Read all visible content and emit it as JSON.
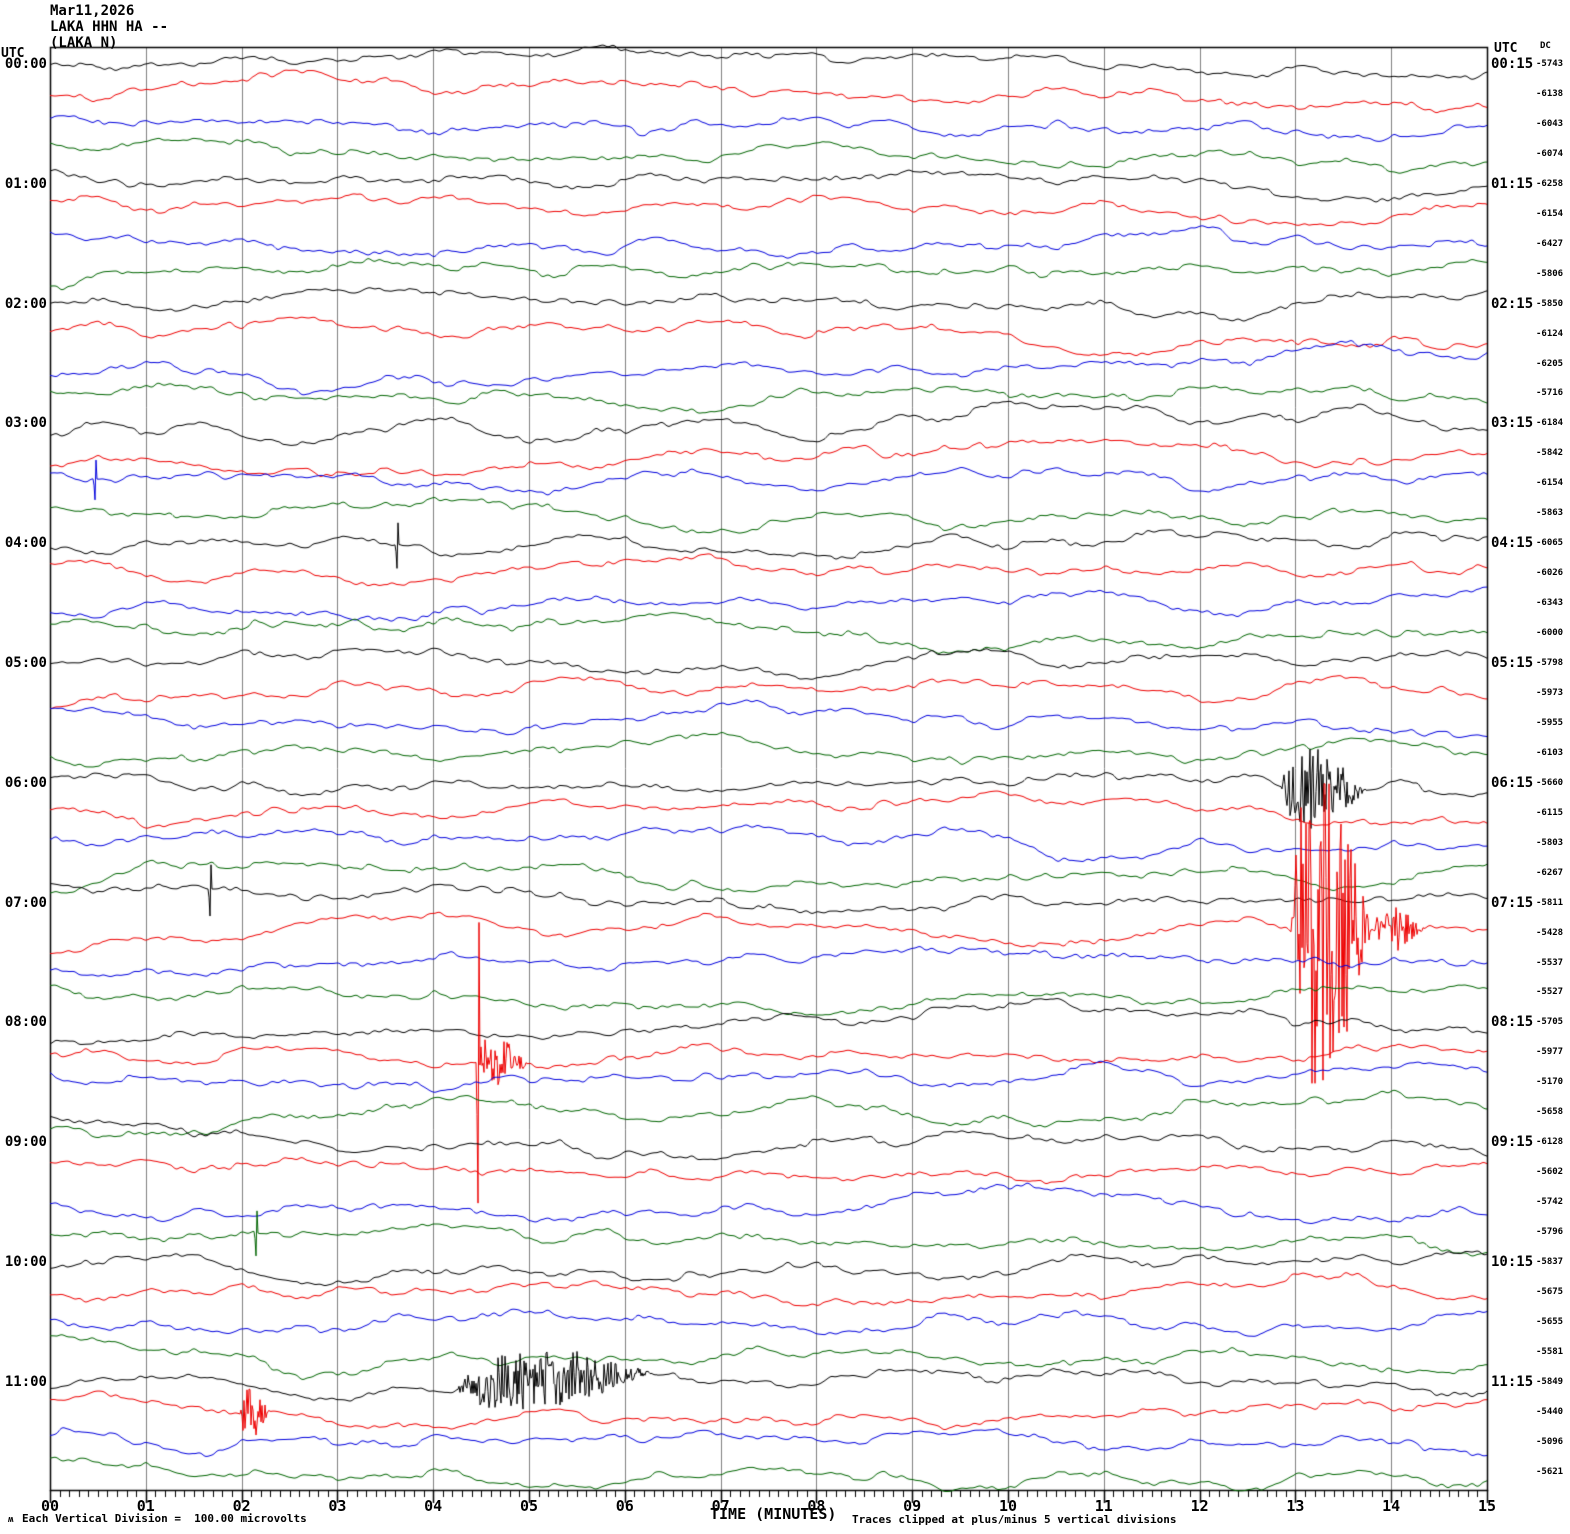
{
  "header": {
    "date": "Mar11,2026",
    "station": "LAKA HHN HA --",
    "station_name": "(LAKA N)"
  },
  "axes": {
    "left_utc_header": "UTC",
    "right_utc_header": "UTC",
    "right_dc_header": "DC",
    "left_times": [
      "00:00",
      "01:00",
      "02:00",
      "03:00",
      "04:00",
      "05:00",
      "06:00",
      "07:00",
      "08:00",
      "09:00",
      "10:00",
      "11:00"
    ],
    "right_times": [
      "00:15",
      "01:15",
      "02:15",
      "03:15",
      "04:15",
      "05:15",
      "06:15",
      "07:15",
      "08:15",
      "09:15",
      "10:15",
      "11:15"
    ],
    "x_ticks": [
      "00",
      "01",
      "02",
      "03",
      "04",
      "05",
      "06",
      "07",
      "08",
      "09",
      "10",
      "11",
      "12",
      "13",
      "14",
      "15"
    ],
    "xlabel": "TIME (MINUTES)"
  },
  "footer": {
    "corner_glyph": "ʍ",
    "scale_note": "Each Vertical Division =  100.00 microvolts",
    "clip_note": "Traces clipped at plus/minus 5 vertical divisions"
  },
  "colors": {
    "background": "#ffffff",
    "text": "#000000",
    "grid": "#7f7f7f",
    "trace_cycle": [
      "#000000",
      "#ee0000",
      "#0000dd",
      "#006400"
    ]
  },
  "chart_data": {
    "type": "line",
    "subtype": "helicorder-seismogram",
    "title": "LAKA HHN HA -- (LAKA N)  Mar11,2026",
    "xlabel": "TIME (MINUTES)",
    "x_range_minutes": [
      0,
      15
    ],
    "x_major_tick_minutes": 1,
    "x_minor_ticks_per_major": 10,
    "rows": 48,
    "traces_per_hour": 4,
    "minutes_per_trace": 15,
    "hour_rows_utc": [
      "00:00",
      "01:00",
      "02:00",
      "03:00",
      "04:00",
      "05:00",
      "06:00",
      "07:00",
      "08:00",
      "09:00",
      "10:00",
      "11:00"
    ],
    "trace_color_cycle": [
      "black",
      "red",
      "blue",
      "green"
    ],
    "trace_segment_start_offset_minutes": {
      "black": 0,
      "red": 15,
      "blue": 30,
      "green": 45
    },
    "vertical_division_microvolts": 100.0,
    "clip_divisions": 5,
    "background_noise_amplitude_divisions": 1,
    "dc_offsets": [
      -5743,
      -6138,
      -6043,
      -6074,
      -6258,
      -6154,
      -6427,
      -5806,
      -5850,
      -6124,
      -6205,
      -5716,
      -6184,
      -5842,
      -6154,
      -5863,
      -6065,
      -6026,
      -6343,
      -6000,
      -5798,
      -5973,
      -5955,
      -6103,
      -5660,
      -6115,
      -5803,
      -6267,
      -5811,
      -5428,
      -5537,
      -5527,
      -5705,
      -5977,
      -5170,
      -5658,
      -6128,
      -5602,
      -5742,
      -5796,
      -5837,
      -5675,
      -5655,
      -5581,
      -5849,
      -5440,
      -5096,
      -5621
    ],
    "events": [
      {
        "row": 24,
        "color": "black",
        "utc_window": "06:00-06:15",
        "minutes": [
          12.85,
          13.75
        ],
        "amplitude_divisions": 1.4,
        "kind": "high-frequency burst"
      },
      {
        "row": 29,
        "color": "red",
        "utc_window": "07:15-07:30",
        "minutes": [
          12.95,
          13.8
        ],
        "amplitude_divisions": 6.0,
        "kind": "clipped event"
      },
      {
        "row": 29,
        "color": "red",
        "utc_window": "07:15-07:30",
        "minutes": [
          13.8,
          14.35
        ],
        "amplitude_divisions": 0.8,
        "kind": "coda"
      },
      {
        "row": 33,
        "color": "red",
        "utc_window": "08:15-08:30",
        "minutes": [
          4.47,
          4.47
        ],
        "amplitude_divisions": 5.5,
        "kind": "spike"
      },
      {
        "row": 33,
        "color": "red",
        "utc_window": "08:15-08:30",
        "minutes": [
          4.45,
          5.0
        ],
        "amplitude_divisions": 0.8,
        "kind": "burst"
      },
      {
        "row": 44,
        "color": "black",
        "utc_window": "11:00-11:15",
        "minutes": [
          4.25,
          6.35
        ],
        "amplitude_divisions": 1.0,
        "kind": "high-frequency burst"
      },
      {
        "row": 45,
        "color": "red",
        "utc_window": "11:15-11:30",
        "minutes": [
          1.98,
          2.3
        ],
        "amplitude_divisions": 0.9,
        "kind": "burst"
      },
      {
        "row": 28,
        "color": "black",
        "utc_window": "07:00-07:15",
        "minutes": [
          1.67,
          1.67
        ],
        "amplitude_divisions": 0.9,
        "kind": "spike"
      },
      {
        "row": 39,
        "color": "green",
        "utc_window": "09:45-10:00",
        "minutes": [
          2.15,
          2.15
        ],
        "amplitude_divisions": 0.8,
        "kind": "spike"
      },
      {
        "row": 14,
        "color": "blue",
        "utc_window": "03:30-03:45",
        "minutes": [
          0.47,
          0.47
        ],
        "amplitude_divisions": 0.7,
        "kind": "spike"
      },
      {
        "row": 16,
        "color": "black",
        "utc_window": "04:00-04:15",
        "minutes": [
          3.62,
          3.62
        ],
        "amplitude_divisions": 0.8,
        "kind": "spike"
      }
    ]
  }
}
